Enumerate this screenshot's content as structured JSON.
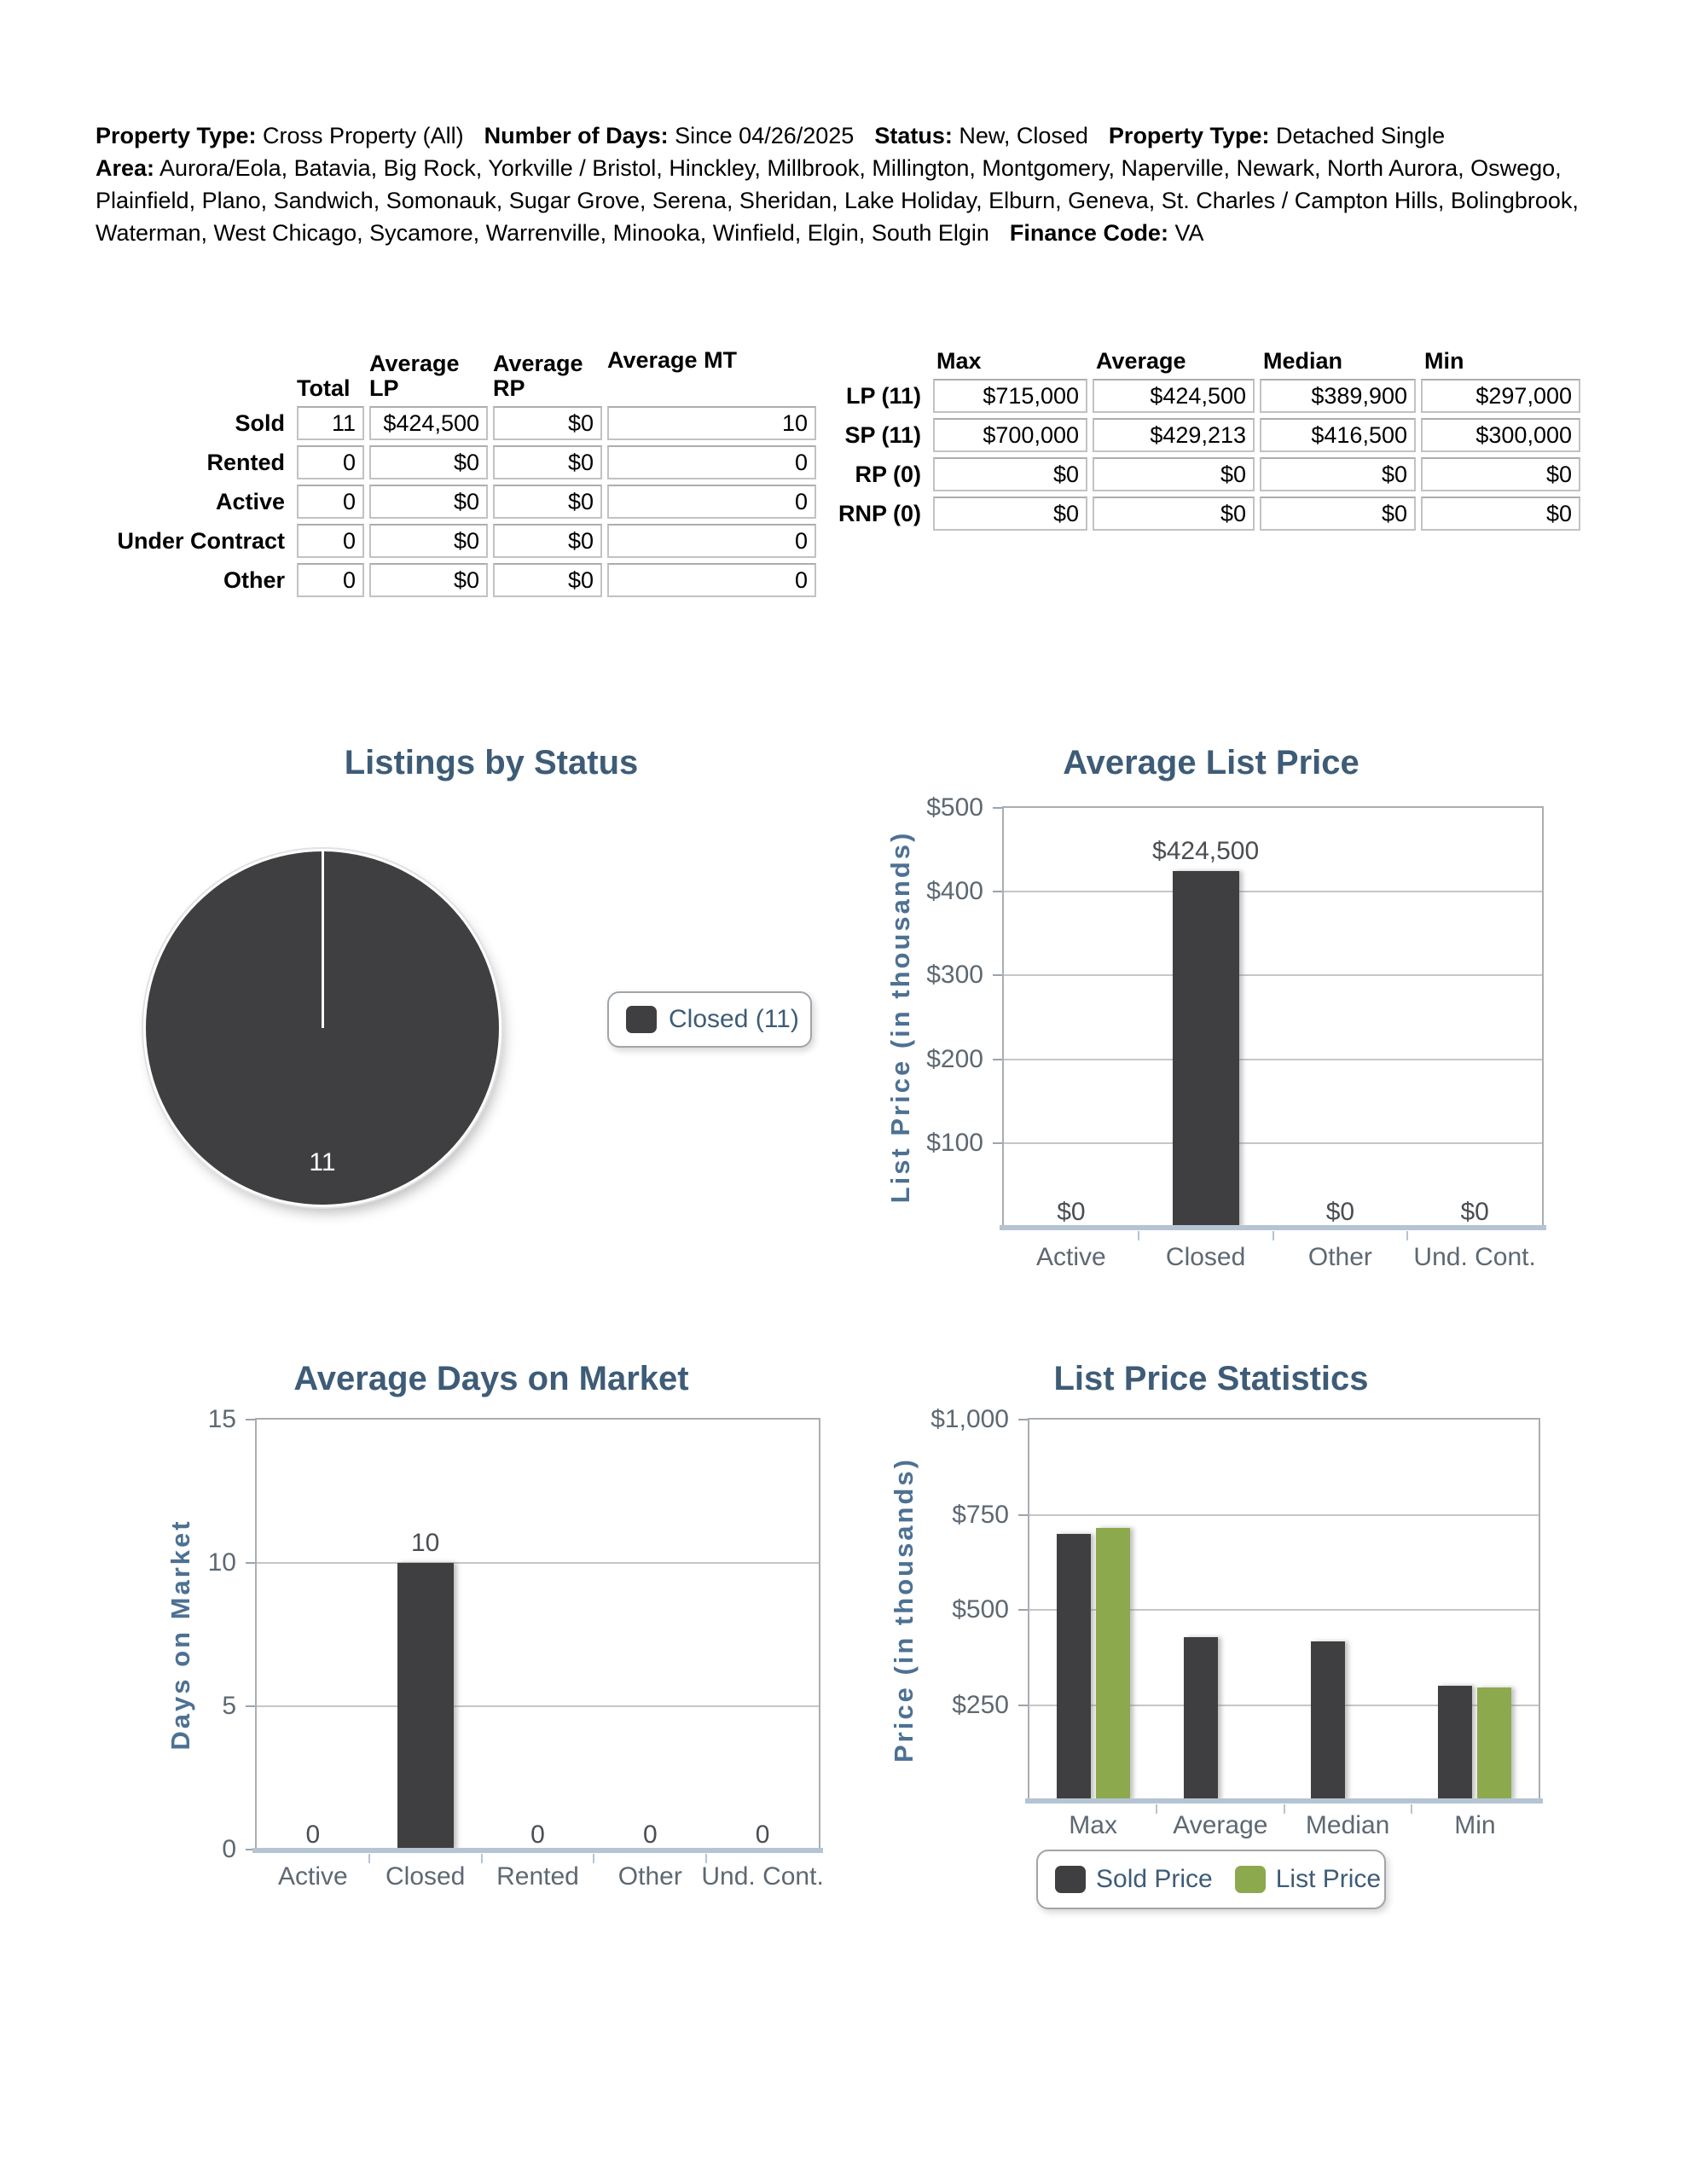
{
  "header": {
    "row1": [
      {
        "label": "Property Type:",
        "value": "Cross Property (All)"
      },
      {
        "label": "Number of Days:",
        "value": "Since 04/26/2025"
      },
      {
        "label": "Status:",
        "value": "New, Closed"
      },
      {
        "label": "Property Type:",
        "value": "Detached Single"
      }
    ],
    "row2": [
      {
        "label": "Area:",
        "value": "Aurora/Eola, Batavia, Big Rock, Yorkville / Bristol, Hinckley, Millbrook, Millington, Montgomery, Naperville, Newark, North Aurora, Oswego, Plainfield, Plano, Sandwich, Somonauk, Sugar Grove, Serena, Sheridan, Lake Holiday, Elburn, Geneva, St. Charles / Campton Hills, Bolingbrook, Waterman, West Chicago, Sycamore, Warrenville, Minooka, Winfield, Elgin, South Elgin"
      },
      {
        "label": "Finance Code:",
        "value": "VA"
      }
    ]
  },
  "status_table": {
    "col_headers": [
      "Total",
      "Average LP",
      "Average RP",
      "Average MT"
    ],
    "rows": [
      {
        "label": "Sold",
        "values": [
          "11",
          "$424,500",
          "$0",
          "10"
        ]
      },
      {
        "label": "Rented",
        "values": [
          "0",
          "$0",
          "$0",
          "0"
        ]
      },
      {
        "label": "Active",
        "values": [
          "0",
          "$0",
          "$0",
          "0"
        ]
      },
      {
        "label": "Under Contract",
        "values": [
          "0",
          "$0",
          "$0",
          "0"
        ]
      },
      {
        "label": "Other",
        "values": [
          "0",
          "$0",
          "$0",
          "0"
        ]
      }
    ]
  },
  "price_table": {
    "col_headers": [
      "Max",
      "Average",
      "Median",
      "Min"
    ],
    "rows": [
      {
        "label": "LP (11)",
        "values": [
          "$715,000",
          "$424,500",
          "$389,900",
          "$297,000"
        ]
      },
      {
        "label": "SP (11)",
        "values": [
          "$700,000",
          "$429,213",
          "$416,500",
          "$300,000"
        ]
      },
      {
        "label": "RP (0)",
        "values": [
          "$0",
          "$0",
          "$0",
          "$0"
        ]
      },
      {
        "label": "RNP (0)",
        "values": [
          "$0",
          "$0",
          "$0",
          "$0"
        ]
      }
    ]
  },
  "palette": {
    "bar_dark": "#3f3f41",
    "bar_green": "#8ca94e",
    "title_blue": "#3e5c77",
    "axis_label_blue": "#4d7193",
    "tick_gray": "#5d6872",
    "data_label_gray": "#4a4e52",
    "axis_band_blue": "#b5c4d2"
  },
  "chart_data": [
    {
      "type": "pie",
      "title": "Listings by Status",
      "slices": [
        {
          "label": "Closed",
          "count": 11,
          "color": "#3f3f41"
        }
      ],
      "data_label": "11",
      "legend": [
        {
          "label": "Closed (11)",
          "color": "#3f3f41"
        }
      ],
      "legend_position": "right"
    },
    {
      "type": "bar",
      "title": "Average List Price",
      "ylabel": "List Price (in thousands)",
      "ylim": [
        0,
        500
      ],
      "ytick_values": [
        500,
        400,
        300,
        200,
        100
      ],
      "ytick_labels": [
        "$500",
        "$400",
        "$300",
        "$200",
        "$100"
      ],
      "categories": [
        "Active",
        "Closed",
        "Other",
        "Und. Cont."
      ],
      "values": [
        0,
        424.5,
        0,
        0
      ],
      "values_unit": "USD thousands",
      "bar_labels": [
        "$0",
        "$424,500",
        "$0",
        "$0"
      ],
      "bar_color": "#3f3f41",
      "grid": true,
      "legend_position": "none"
    },
    {
      "type": "bar",
      "title": "Average Days on Market",
      "ylabel": "Days on Market",
      "ylim": [
        0,
        15
      ],
      "ytick_values": [
        15,
        10,
        5,
        0
      ],
      "ytick_labels": [
        "15",
        "10",
        "5",
        "0"
      ],
      "categories": [
        "Active",
        "Closed",
        "Rented",
        "Other",
        "Und. Cont."
      ],
      "values": [
        0,
        10,
        0,
        0,
        0
      ],
      "values_unit": "days",
      "bar_labels": [
        "0",
        "10",
        "0",
        "0",
        "0"
      ],
      "bar_color": "#3f3f41",
      "grid": true,
      "legend_position": "none"
    },
    {
      "type": "bar",
      "title": "List Price Statistics",
      "ylabel": "Price (in thousands)",
      "ylim": [
        0,
        1000
      ],
      "ytick_values": [
        1000,
        750,
        500,
        250
      ],
      "ytick_labels": [
        "$1,000",
        "$750",
        "$500",
        "$250"
      ],
      "categories": [
        "Max",
        "Average",
        "Median",
        "Min"
      ],
      "series": [
        {
          "name": "Sold Price",
          "color": "#3f3f41",
          "values": [
            700,
            429.213,
            416.5,
            300
          ]
        },
        {
          "name": "List Price",
          "color": "#8ca94e",
          "values": [
            715,
            null,
            null,
            297
          ]
        }
      ],
      "values_unit": "USD thousands",
      "grid": true,
      "legend_position": "bottom"
    }
  ]
}
